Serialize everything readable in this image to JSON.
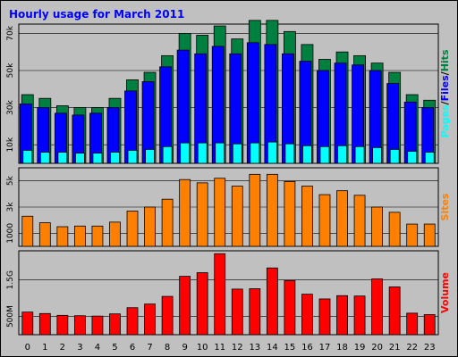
{
  "colors": {
    "frame": "#c0c0c0",
    "plot_bg": "#c0c0c0",
    "title": "#0000ff",
    "hits": "#008040",
    "files": "#0000ff",
    "pages": "#00ffff",
    "sites": "#ff8000",
    "volume": "#ff0000",
    "grid": "#000000"
  },
  "chart_data": [
    {
      "type": "bar",
      "title": "Hourly usage for March 2011",
      "ylabel_parts": [
        "Pages",
        "Files",
        "Hits"
      ],
      "ylabel_separator": "/",
      "x": [
        0,
        1,
        2,
        3,
        4,
        5,
        6,
        7,
        8,
        9,
        10,
        11,
        12,
        13,
        14,
        15,
        16,
        17,
        18,
        19,
        20,
        21,
        22,
        23
      ],
      "yticks": [
        "10k",
        "30k",
        "50k",
        "70k"
      ],
      "ylim": [
        0,
        75000
      ],
      "grid": true,
      "series": [
        {
          "name": "Hits",
          "values": [
            37000,
            35000,
            31000,
            30000,
            30000,
            35000,
            45000,
            49000,
            58000,
            70000,
            69000,
            74000,
            67000,
            77000,
            77000,
            71000,
            64000,
            56000,
            60000,
            58000,
            54000,
            49000,
            37000,
            34000
          ]
        },
        {
          "name": "Files",
          "values": [
            32000,
            30000,
            27000,
            26000,
            27000,
            30000,
            39000,
            44000,
            52000,
            61000,
            59000,
            63000,
            59000,
            65000,
            64000,
            59000,
            55000,
            50000,
            54000,
            53000,
            50000,
            43000,
            33000,
            30000
          ]
        },
        {
          "name": "Pages",
          "values": [
            7000,
            6000,
            6000,
            5500,
            5500,
            6000,
            7000,
            7500,
            9000,
            11000,
            11000,
            11000,
            10500,
            11000,
            11500,
            10500,
            9500,
            9000,
            9500,
            9000,
            8500,
            7500,
            6500,
            6000
          ]
        }
      ]
    },
    {
      "type": "bar",
      "ylabel": "Sites",
      "x": [
        0,
        1,
        2,
        3,
        4,
        5,
        6,
        7,
        8,
        9,
        10,
        11,
        12,
        13,
        14,
        15,
        16,
        17,
        18,
        19,
        20,
        21,
        22,
        23
      ],
      "yticks": [
        "1000",
        "3k",
        "5k"
      ],
      "ylim": [
        0,
        6000
      ],
      "grid": true,
      "series": [
        {
          "name": "Sites",
          "values": [
            2300,
            1800,
            1500,
            1550,
            1550,
            1850,
            2700,
            3000,
            3600,
            5100,
            4850,
            5200,
            4600,
            5500,
            5500,
            4950,
            4600,
            3950,
            4250,
            3900,
            3000,
            2600,
            1700,
            1700
          ]
        }
      ]
    },
    {
      "type": "bar",
      "ylabel": "Volume",
      "x": [
        0,
        1,
        2,
        3,
        4,
        5,
        6,
        7,
        8,
        9,
        10,
        11,
        12,
        13,
        14,
        15,
        16,
        17,
        18,
        19,
        20,
        21,
        22,
        23
      ],
      "yticks": [
        "500M",
        "1.5G"
      ],
      "ylim": [
        0,
        2.3
      ],
      "grid": true,
      "series": [
        {
          "name": "Volume",
          "values": [
            0.62,
            0.58,
            0.53,
            0.52,
            0.51,
            0.57,
            0.74,
            0.84,
            1.05,
            1.6,
            1.7,
            2.22,
            1.25,
            1.26,
            1.83,
            1.48,
            1.11,
            0.98,
            1.07,
            1.06,
            1.53,
            1.31,
            0.59,
            0.55
          ]
        }
      ]
    }
  ]
}
